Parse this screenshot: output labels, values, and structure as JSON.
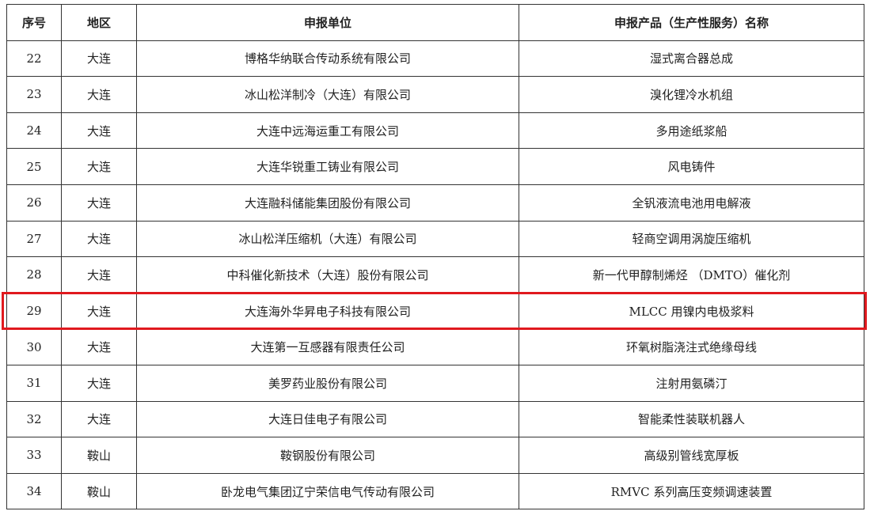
{
  "headers": [
    "序号",
    "地区",
    "申报单位",
    "申报产品（生产性服务）名称"
  ],
  "rows": [
    {
      "no": "22",
      "region": "大连",
      "company": "博格华纳联合传动系统有限公司",
      "product": "湿式离合器总成"
    },
    {
      "no": "23",
      "region": "大连",
      "company": "冰山松洋制冷（大连）有限公司",
      "product": "溴化锂冷水机组"
    },
    {
      "no": "24",
      "region": "大连",
      "company": "大连中远海运重工有限公司",
      "product": "多用途纸浆船"
    },
    {
      "no": "25",
      "region": "大连",
      "company": "大连华锐重工铸业有限公司",
      "product": "风电铸件"
    },
    {
      "no": "26",
      "region": "大连",
      "company": "大连融科储能集团股份有限公司",
      "product": "全钒液流电池用电解液"
    },
    {
      "no": "27",
      "region": "大连",
      "company": "冰山松洋压缩机（大连）有限公司",
      "product": "轻商空调用涡旋压缩机"
    },
    {
      "no": "28",
      "region": "大连",
      "company": "中科催化新技术（大连）股份有限公司",
      "product": "新一代甲醇制烯烃 （DMTO）催化剂"
    },
    {
      "no": "29",
      "region": "大连",
      "company": "大连海外华昇电子科技有限公司",
      "product": "MLCC 用镍内电极浆料"
    },
    {
      "no": "30",
      "region": "大连",
      "company": "大连第一互感器有限责任公司",
      "product": "环氧树脂浇注式绝缘母线"
    },
    {
      "no": "31",
      "region": "大连",
      "company": "美罗药业股份有限公司",
      "product": "注射用氨磷汀"
    },
    {
      "no": "32",
      "region": "大连",
      "company": "大连日佳电子有限公司",
      "product": "智能柔性装联机器人"
    },
    {
      "no": "33",
      "region": "鞍山",
      "company": "鞍钢股份有限公司",
      "product": "高级别管线宽厚板"
    },
    {
      "no": "34",
      "region": "鞍山",
      "company": "卧龙电气集团辽宁荣信电气传动有限公司",
      "product": "RMVC 系列高压变频调速装置"
    }
  ],
  "highlight_row": "29",
  "highlight_color": "#e0191e"
}
